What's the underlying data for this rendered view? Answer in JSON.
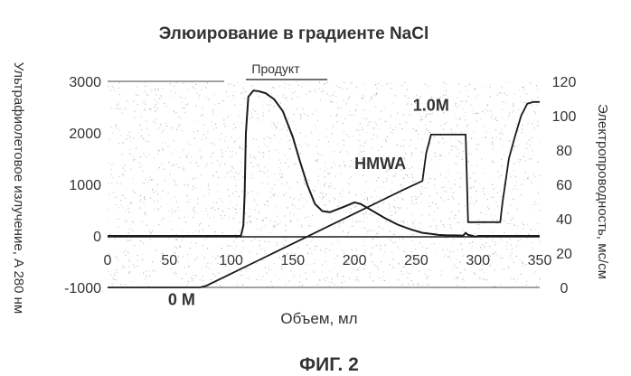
{
  "chart_data": {
    "type": "line",
    "title": "Элюирование в градиенте NaCl",
    "xlabel": "Объем, мл",
    "ylabel_left": "Ультрафиолетовое излучение, A 280 нм",
    "ylabel_right": "Электропроводность, мс/см",
    "xlim": [
      0,
      350
    ],
    "ylim_left": [
      -1000,
      3000
    ],
    "ylim_right": [
      0,
      120
    ],
    "x_ticks": [
      "0",
      "50",
      "100",
      "150",
      "200",
      "250",
      "300",
      "350"
    ],
    "y_left_ticks": [
      "3000",
      "2000",
      "1000",
      "0",
      "-1000"
    ],
    "y_right_ticks": [
      "120",
      "100",
      "80",
      "60",
      "40",
      "20",
      "0"
    ],
    "grid": false,
    "series": [
      {
        "axis": "left",
        "x": [
          0,
          108,
          110,
          111,
          112,
          114,
          118,
          122,
          128,
          135,
          142,
          150,
          156,
          162,
          168,
          174,
          180,
          190,
          200,
          205,
          215,
          225,
          235,
          245,
          255,
          262,
          268,
          275,
          282,
          288,
          290,
          292,
          296,
          298,
          300,
          310,
          320,
          330,
          340,
          350
        ],
        "y": [
          0,
          0,
          200,
          800,
          2000,
          2700,
          2820,
          2810,
          2770,
          2650,
          2420,
          1920,
          1430,
          980,
          620,
          480,
          460,
          550,
          650,
          620,
          480,
          340,
          220,
          130,
          60,
          40,
          20,
          10,
          10,
          5,
          60,
          20,
          0,
          -20,
          0,
          0,
          0,
          0,
          0,
          0
        ]
      },
      {
        "axis": "right",
        "x": [
          0,
          75,
          80,
          100,
          120,
          140,
          160,
          180,
          200,
          220,
          240,
          255,
          258,
          262,
          270,
          280,
          288,
          290,
          292,
          300,
          310,
          318,
          320,
          322,
          325,
          330,
          335,
          340,
          345,
          350
        ],
        "y": [
          0,
          0,
          1,
          8,
          15,
          22,
          29,
          36,
          43,
          50,
          57,
          62,
          78,
          89,
          89,
          89,
          89,
          89,
          38,
          38,
          38,
          38,
          50,
          60,
          75,
          88,
          100,
          107,
          108,
          108
        ]
      }
    ],
    "annotations": {
      "product": "Продукт",
      "product_range": [
        112,
        178
      ],
      "hmwa": "HMWA",
      "hmwa_at": [
        200,
        1300
      ],
      "salt": "1.0М",
      "salt_at": [
        262,
        2430
      ],
      "zero": "0 М",
      "zero_at": [
        60,
        -1340
      ]
    },
    "caption": "ФИГ. 2"
  },
  "colors": {
    "line": "#1a1a1a",
    "text": "#333333",
    "noise": "#9a9a9a"
  }
}
